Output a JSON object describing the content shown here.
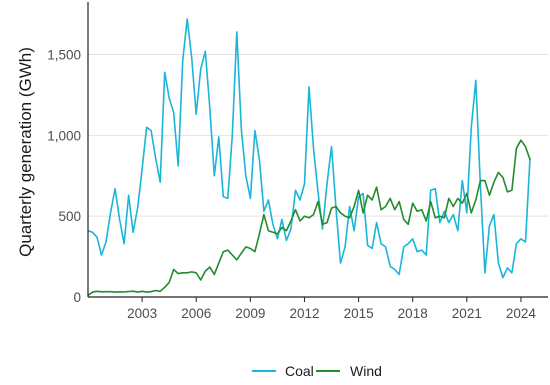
{
  "chart_data": {
    "type": "line",
    "title": "",
    "xlabel": "",
    "ylabel": "Quarterly generation (GWh)",
    "xlim": [
      2000.0,
      2025.5
    ],
    "ylim": [
      0,
      1800
    ],
    "x_ticks": [
      {
        "value": 2003,
        "label": "2003"
      },
      {
        "value": 2006,
        "label": "2006"
      },
      {
        "value": 2009,
        "label": "2009"
      },
      {
        "value": 2012,
        "label": "2012"
      },
      {
        "value": 2015,
        "label": "2015"
      },
      {
        "value": 2018,
        "label": "2018"
      },
      {
        "value": 2021,
        "label": "2021"
      },
      {
        "value": 2024,
        "label": "2024"
      }
    ],
    "y_ticks": [
      {
        "value": 0,
        "label": "0"
      },
      {
        "value": 500,
        "label": "500"
      },
      {
        "value": 1000,
        "label": "1,000"
      },
      {
        "value": 1500,
        "label": "1,500"
      }
    ],
    "grid": true,
    "legend_position": "bottom",
    "series": [
      {
        "name": "Coal",
        "color": "#1ab6d8",
        "points": [
          [
            2000.0,
            410
          ],
          [
            2000.25,
            400
          ],
          [
            2000.5,
            370
          ],
          [
            2000.75,
            260
          ],
          [
            2001.0,
            340
          ],
          [
            2001.25,
            520
          ],
          [
            2001.5,
            670
          ],
          [
            2001.75,
            480
          ],
          [
            2002.0,
            330
          ],
          [
            2002.25,
            630
          ],
          [
            2002.5,
            400
          ],
          [
            2002.75,
            550
          ],
          [
            2003.0,
            790
          ],
          [
            2003.25,
            1050
          ],
          [
            2003.5,
            1030
          ],
          [
            2003.75,
            860
          ],
          [
            2004.0,
            710
          ],
          [
            2004.25,
            1390
          ],
          [
            2004.5,
            1230
          ],
          [
            2004.75,
            1140
          ],
          [
            2005.0,
            810
          ],
          [
            2005.25,
            1460
          ],
          [
            2005.5,
            1720
          ],
          [
            2005.75,
            1480
          ],
          [
            2006.0,
            1130
          ],
          [
            2006.25,
            1410
          ],
          [
            2006.5,
            1520
          ],
          [
            2006.75,
            1170
          ],
          [
            2007.0,
            750
          ],
          [
            2007.25,
            990
          ],
          [
            2007.5,
            620
          ],
          [
            2007.75,
            610
          ],
          [
            2008.0,
            1000
          ],
          [
            2008.25,
            1640
          ],
          [
            2008.5,
            1040
          ],
          [
            2008.75,
            750
          ],
          [
            2009.0,
            610
          ],
          [
            2009.25,
            1030
          ],
          [
            2009.5,
            850
          ],
          [
            2009.75,
            530
          ],
          [
            2010.0,
            600
          ],
          [
            2010.25,
            450
          ],
          [
            2010.5,
            360
          ],
          [
            2010.75,
            480
          ],
          [
            2011.0,
            350
          ],
          [
            2011.25,
            420
          ],
          [
            2011.5,
            660
          ],
          [
            2011.75,
            600
          ],
          [
            2012.0,
            700
          ],
          [
            2012.25,
            1300
          ],
          [
            2012.5,
            920
          ],
          [
            2012.75,
            650
          ],
          [
            2013.0,
            420
          ],
          [
            2013.25,
            700
          ],
          [
            2013.5,
            930
          ],
          [
            2013.75,
            550
          ],
          [
            2014.0,
            210
          ],
          [
            2014.25,
            310
          ],
          [
            2014.5,
            560
          ],
          [
            2014.75,
            410
          ],
          [
            2015.0,
            620
          ],
          [
            2015.25,
            640
          ],
          [
            2015.5,
            320
          ],
          [
            2015.75,
            300
          ],
          [
            2016.0,
            460
          ],
          [
            2016.25,
            330
          ],
          [
            2016.5,
            310
          ],
          [
            2016.75,
            190
          ],
          [
            2017.0,
            170
          ],
          [
            2017.25,
            140
          ],
          [
            2017.5,
            310
          ],
          [
            2017.75,
            330
          ],
          [
            2018.0,
            360
          ],
          [
            2018.25,
            280
          ],
          [
            2018.5,
            290
          ],
          [
            2018.75,
            260
          ],
          [
            2019.0,
            660
          ],
          [
            2019.25,
            670
          ],
          [
            2019.5,
            460
          ],
          [
            2019.75,
            530
          ],
          [
            2020.0,
            460
          ],
          [
            2020.25,
            510
          ],
          [
            2020.5,
            410
          ],
          [
            2020.75,
            720
          ],
          [
            2021.0,
            520
          ],
          [
            2021.25,
            1050
          ],
          [
            2021.5,
            1340
          ],
          [
            2021.75,
            690
          ],
          [
            2022.0,
            150
          ],
          [
            2022.25,
            440
          ],
          [
            2022.5,
            510
          ],
          [
            2022.75,
            210
          ],
          [
            2023.0,
            120
          ],
          [
            2023.25,
            180
          ],
          [
            2023.5,
            150
          ],
          [
            2023.75,
            330
          ],
          [
            2024.0,
            360
          ],
          [
            2024.25,
            340
          ],
          [
            2024.5,
            860
          ]
        ]
      },
      {
        "name": "Wind",
        "color": "#238b2e",
        "points": [
          [
            2000.0,
            10
          ],
          [
            2000.25,
            30
          ],
          [
            2000.5,
            35
          ],
          [
            2000.75,
            32
          ],
          [
            2001.0,
            33
          ],
          [
            2001.25,
            33
          ],
          [
            2001.5,
            30
          ],
          [
            2001.75,
            32
          ],
          [
            2002.0,
            31
          ],
          [
            2002.25,
            34
          ],
          [
            2002.5,
            36
          ],
          [
            2002.75,
            30
          ],
          [
            2003.0,
            35
          ],
          [
            2003.25,
            30
          ],
          [
            2003.5,
            33
          ],
          [
            2003.75,
            40
          ],
          [
            2004.0,
            35
          ],
          [
            2004.25,
            60
          ],
          [
            2004.5,
            90
          ],
          [
            2004.75,
            170
          ],
          [
            2005.0,
            145
          ],
          [
            2005.25,
            150
          ],
          [
            2005.5,
            150
          ],
          [
            2005.75,
            155
          ],
          [
            2006.0,
            150
          ],
          [
            2006.25,
            105
          ],
          [
            2006.5,
            160
          ],
          [
            2006.75,
            185
          ],
          [
            2007.0,
            140
          ],
          [
            2007.25,
            210
          ],
          [
            2007.5,
            280
          ],
          [
            2007.75,
            290
          ],
          [
            2008.0,
            260
          ],
          [
            2008.25,
            230
          ],
          [
            2008.5,
            270
          ],
          [
            2008.75,
            310
          ],
          [
            2009.0,
            300
          ],
          [
            2009.25,
            280
          ],
          [
            2009.5,
            390
          ],
          [
            2009.75,
            510
          ],
          [
            2010.0,
            410
          ],
          [
            2010.25,
            400
          ],
          [
            2010.5,
            390
          ],
          [
            2010.75,
            430
          ],
          [
            2011.0,
            410
          ],
          [
            2011.25,
            470
          ],
          [
            2011.5,
            540
          ],
          [
            2011.75,
            470
          ],
          [
            2012.0,
            500
          ],
          [
            2012.25,
            490
          ],
          [
            2012.5,
            510
          ],
          [
            2012.75,
            590
          ],
          [
            2013.0,
            450
          ],
          [
            2013.25,
            460
          ],
          [
            2013.5,
            550
          ],
          [
            2013.75,
            560
          ],
          [
            2014.0,
            520
          ],
          [
            2014.25,
            500
          ],
          [
            2014.5,
            490
          ],
          [
            2014.75,
            560
          ],
          [
            2015.0,
            660
          ],
          [
            2015.25,
            520
          ],
          [
            2015.5,
            630
          ],
          [
            2015.75,
            600
          ],
          [
            2016.0,
            680
          ],
          [
            2016.25,
            540
          ],
          [
            2016.5,
            560
          ],
          [
            2016.75,
            610
          ],
          [
            2017.0,
            540
          ],
          [
            2017.25,
            590
          ],
          [
            2017.5,
            480
          ],
          [
            2017.75,
            450
          ],
          [
            2018.0,
            580
          ],
          [
            2018.25,
            530
          ],
          [
            2018.5,
            540
          ],
          [
            2018.75,
            470
          ],
          [
            2019.0,
            590
          ],
          [
            2019.25,
            490
          ],
          [
            2019.5,
            500
          ],
          [
            2019.75,
            490
          ],
          [
            2020.0,
            610
          ],
          [
            2020.25,
            560
          ],
          [
            2020.5,
            610
          ],
          [
            2020.75,
            580
          ],
          [
            2021.0,
            640
          ],
          [
            2021.25,
            520
          ],
          [
            2021.5,
            600
          ],
          [
            2021.75,
            720
          ],
          [
            2022.0,
            720
          ],
          [
            2022.25,
            630
          ],
          [
            2022.5,
            710
          ],
          [
            2022.75,
            770
          ],
          [
            2023.0,
            740
          ],
          [
            2023.25,
            650
          ],
          [
            2023.5,
            660
          ],
          [
            2023.75,
            920
          ],
          [
            2024.0,
            970
          ],
          [
            2024.25,
            930
          ],
          [
            2024.5,
            850
          ]
        ]
      }
    ]
  }
}
